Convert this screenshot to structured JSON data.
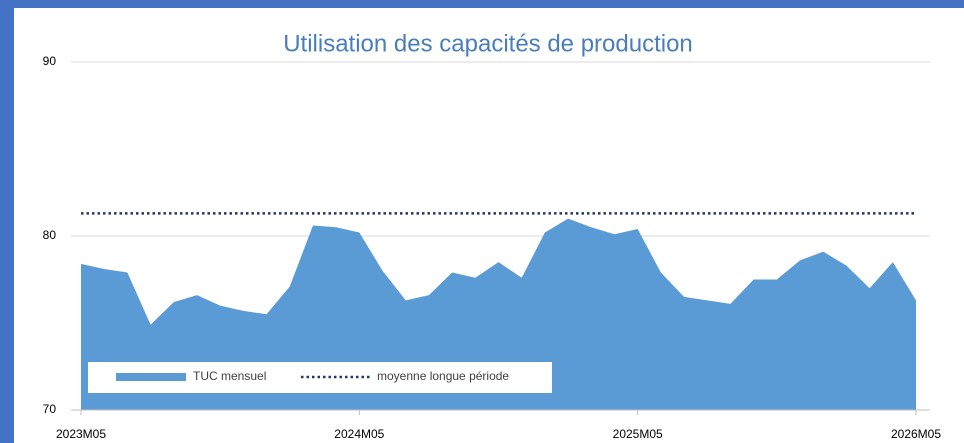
{
  "chart_data": {
    "type": "area",
    "title": "Utilisation des capacités de production",
    "categories": [
      "2023M05",
      null,
      null,
      null,
      null,
      null,
      null,
      null,
      null,
      null,
      null,
      null,
      "2024M05",
      null,
      null,
      null,
      null,
      null,
      null,
      null,
      null,
      null,
      null,
      null,
      "2025M05",
      null,
      null,
      null,
      null,
      null,
      null,
      null,
      null,
      null,
      null,
      null,
      "2026M05"
    ],
    "series": [
      {
        "name": "TUC mensuel",
        "color": "#5b9bd5",
        "values": [
          78.4,
          78.1,
          77.9,
          74.9,
          76.2,
          76.6,
          76.0,
          75.7,
          75.5,
          77.1,
          80.6,
          80.5,
          80.2,
          78.0,
          76.3,
          76.6,
          77.9,
          77.6,
          78.5,
          77.6,
          80.2,
          81.0,
          80.5,
          80.1,
          80.4,
          77.9,
          76.5,
          76.3,
          76.1,
          77.5,
          77.5,
          78.6,
          79.1,
          78.3,
          77.0,
          78.5,
          76.3
        ]
      }
    ],
    "reference_line": {
      "name": "moyenne longue période",
      "value": 81.3,
      "color": "#1f3864"
    },
    "ylim": [
      70,
      90
    ],
    "yticks": [
      70,
      80,
      90
    ],
    "grid": true
  }
}
